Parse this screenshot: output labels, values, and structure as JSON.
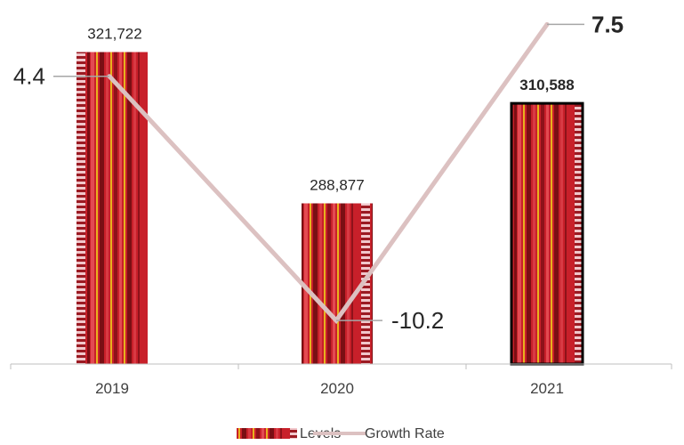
{
  "chart_data": {
    "type": "bar",
    "categories": [
      "2019",
      "2020",
      "2021"
    ],
    "series": [
      {
        "name": "Levels",
        "type": "bar",
        "values": [
          321722,
          288877,
          310588
        ],
        "labels": [
          "321,722",
          "288,877",
          "310,588"
        ]
      },
      {
        "name": "Growth Rate",
        "type": "line",
        "values": [
          4.4,
          -10.2,
          7.5
        ],
        "labels": [
          "4.4",
          "-10.2",
          "7.5"
        ]
      }
    ],
    "legend": {
      "position": "bottom"
    },
    "grid": false,
    "colors": {
      "bar": "#c8202a",
      "bar_dark": "#7a0f14",
      "bar_light": "#f1c7cb",
      "bar_yellow": "#e8b21e",
      "line": "#dcc1c1",
      "leader": "#a6a6a6",
      "axis": "#bfbfbf",
      "text": "#404040",
      "label_text": "#262626"
    }
  }
}
